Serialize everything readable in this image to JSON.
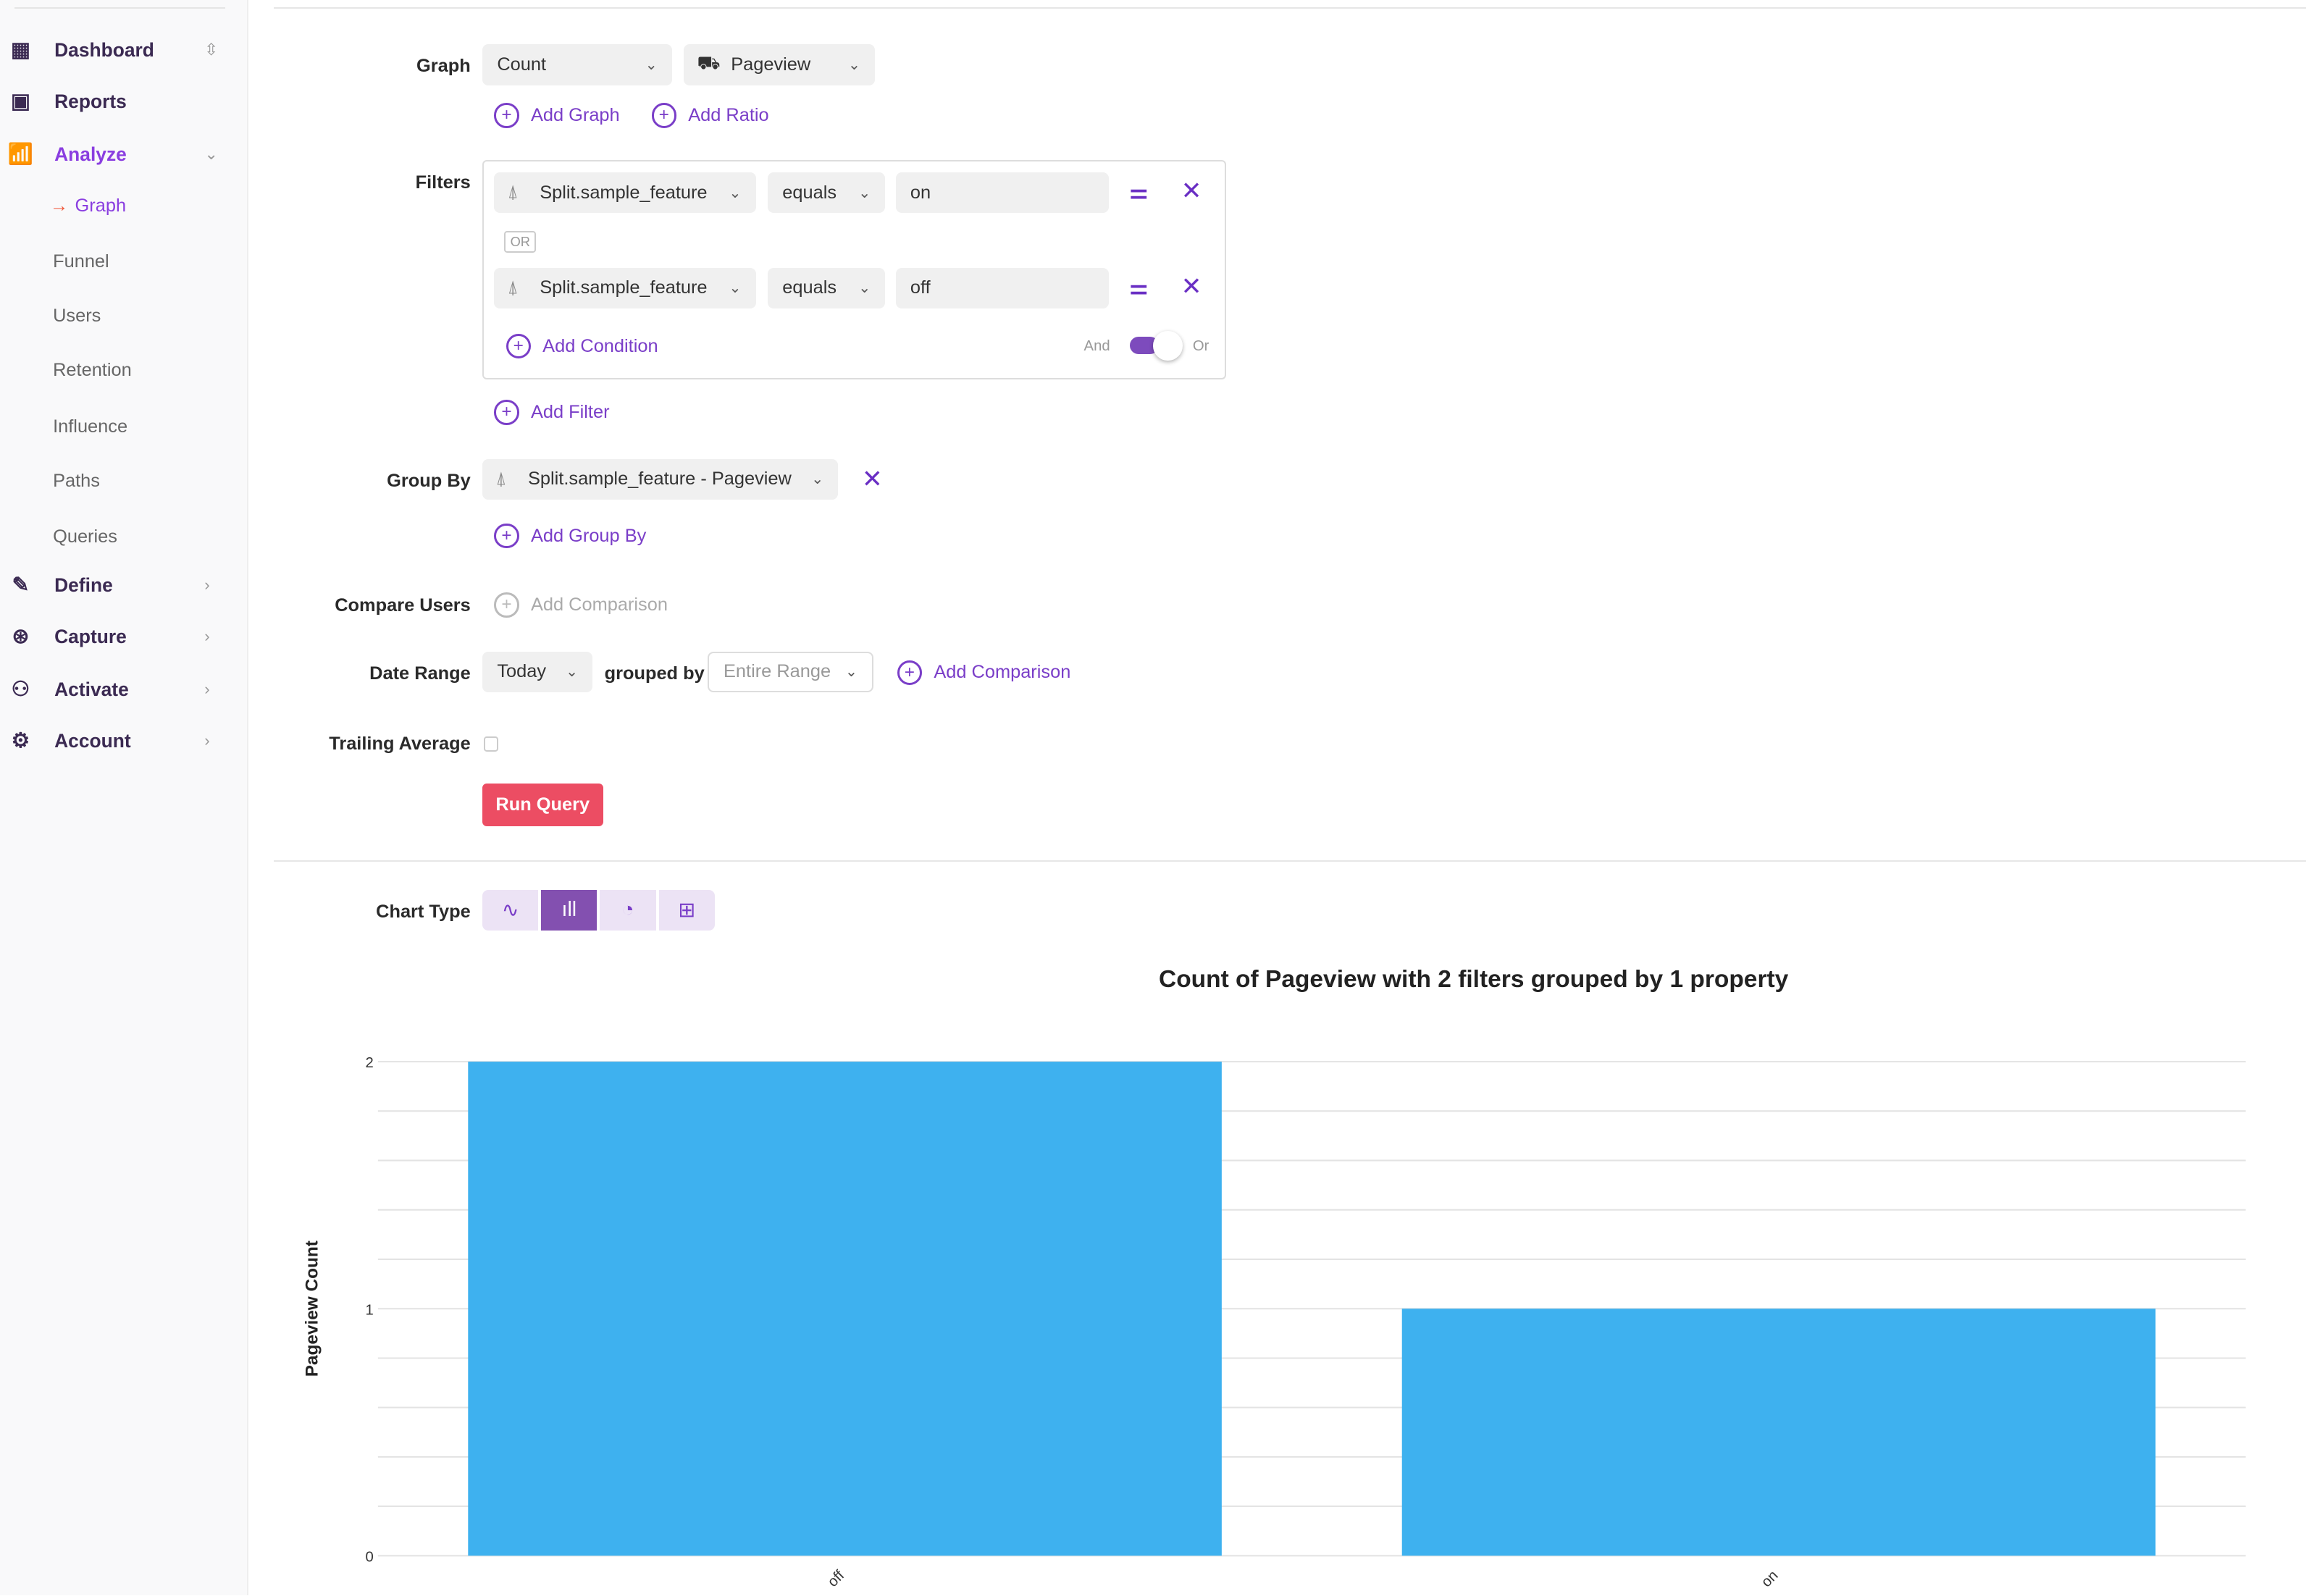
{
  "sidebar": {
    "items": [
      {
        "label": "Dashboard",
        "icon": "grid-icon",
        "chevron": "⌃⌄"
      },
      {
        "label": "Reports",
        "icon": "report-icon"
      },
      {
        "label": "Analyze",
        "icon": "analyze-chart-icon",
        "chevron": "⌄"
      },
      {
        "label": "Define",
        "icon": "define-icon",
        "chevron": ">"
      },
      {
        "label": "Capture",
        "icon": "capture-icon",
        "chevron": ">"
      },
      {
        "label": "Activate",
        "icon": "activate-icon",
        "chevron": ">"
      },
      {
        "label": "Account",
        "icon": "gear-icon",
        "chevron": ">"
      }
    ],
    "analyze_sub": [
      "Graph",
      "Funnel",
      "Users",
      "Retention",
      "Influence",
      "Paths",
      "Queries"
    ]
  },
  "query": {
    "graph_label": "Graph",
    "graph_agg": "Count",
    "graph_event": "Pageview",
    "add_graph": "Add Graph",
    "add_ratio": "Add Ratio",
    "filters_label": "Filters",
    "filters": [
      {
        "property": "Split.sample_feature",
        "operator": "equals",
        "value": "on"
      },
      {
        "property": "Split.sample_feature",
        "operator": "equals",
        "value": "off"
      }
    ],
    "or_badge": "OR",
    "add_condition": "Add Condition",
    "toggle_and": "And",
    "toggle_or": "Or",
    "add_filter": "Add Filter",
    "group_by_label": "Group By",
    "group_by_value": "Split.sample_feature - Pageview",
    "add_group_by": "Add Group By",
    "compare_users_label": "Compare Users",
    "add_comparison_users": "Add Comparison",
    "date_range_label": "Date Range",
    "date_range": "Today",
    "grouped_by": "grouped by",
    "grouped_by_value": "Entire Range",
    "add_comparison": "Add Comparison",
    "trailing_average_label": "Trailing Average",
    "trailing_average_checked": false,
    "run_query": "Run Query"
  },
  "chart_type": {
    "label": "Chart Type",
    "options": [
      "line",
      "bar",
      "pie",
      "table"
    ],
    "selected": "bar"
  },
  "chart_data": {
    "type": "bar",
    "title": "Count of Pageview with 2 filters grouped by 1 property",
    "categories": [
      "off",
      "on"
    ],
    "values": [
      2,
      1
    ],
    "ylabel": "Pageview Count",
    "xlabel": "",
    "ylim": [
      0,
      2
    ],
    "yticks": [
      "0",
      "1",
      "2"
    ],
    "grid": true,
    "color": "#3eb1ef"
  }
}
